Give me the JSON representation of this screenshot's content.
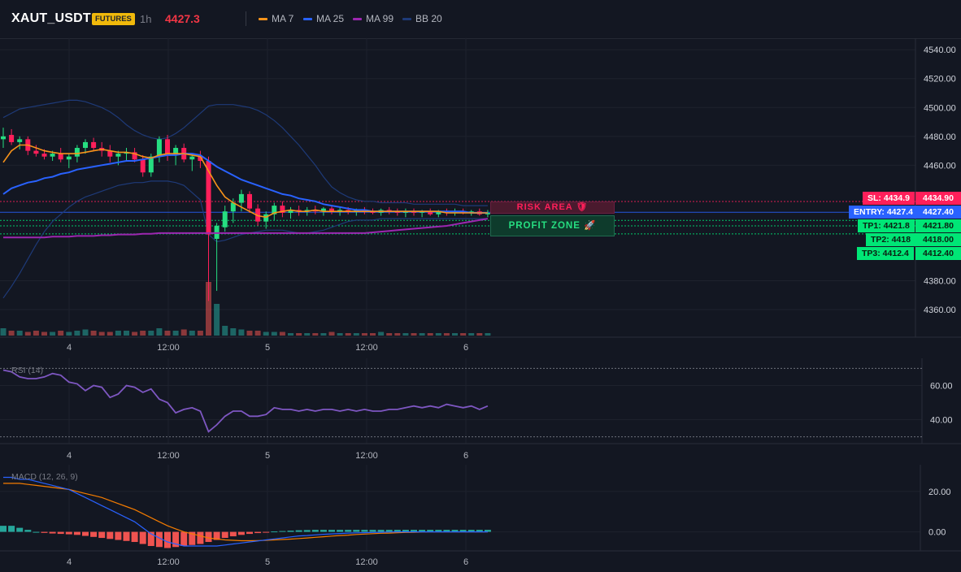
{
  "header": {
    "symbol": "XAUT_USDT",
    "badge": "FUTURES",
    "timeframe": "1h",
    "price": "4427.3",
    "legend": [
      {
        "label": "MA 7",
        "color": "#f7931a"
      },
      {
        "label": "MA 25",
        "color": "#2962ff"
      },
      {
        "label": "MA 99",
        "color": "#9c27b0"
      },
      {
        "label": "BB 20",
        "color": "#1e3a78"
      }
    ]
  },
  "colors": {
    "up": "#26de81",
    "down": "#ff1f5a",
    "ma7": "#f7931a",
    "ma25": "#2962ff",
    "ma99": "#9c27b0",
    "bb": "#1e3a78",
    "rsi": "#7e57c2",
    "macd": "#2962ff",
    "signal": "#f57c00",
    "hist_up": "#26a69a",
    "hist_down": "#ef5350"
  },
  "levels": {
    "sl": {
      "tag": "SL: 4434.9",
      "axis": "4434.90",
      "price": 4434.9,
      "color": "#ff1f5a"
    },
    "entry": {
      "tag": "ENTRY: 4427.4",
      "axis": "4427.40",
      "price": 4427.4,
      "color": "#2962ff"
    },
    "tp1": {
      "tag": "TP1: 4421.8",
      "axis": "4421.80",
      "price": 4421.8,
      "color": "#00e676"
    },
    "tp2": {
      "tag": "TP2: 4418",
      "axis": "4418.00",
      "price": 4418.0,
      "color": "#00e676"
    },
    "tp3": {
      "tag": "TP3: 4412.4",
      "axis": "4412.40",
      "price": 4412.4,
      "color": "#00e676"
    }
  },
  "zones": {
    "risk_label": "RISK AREA 🛡",
    "profit_label": "PROFIT ZONE 🚀"
  },
  "rsi_label": "RSI (14)",
  "macd_label": "MACD (12, 26, 9)",
  "x_ticks": [
    "4",
    "12:00",
    "5",
    "12:00",
    "6"
  ],
  "chart_data": [
    {
      "type": "candlestick",
      "title": "XAUT_USDT 1h",
      "ylim": [
        4342,
        4548
      ],
      "y_ticks": [
        4540,
        4520,
        4500,
        4480,
        4460,
        4380,
        4360
      ],
      "y_tick_labels": [
        "4540.00",
        "4520.00",
        "4500.00",
        "4480.00",
        "4460.00",
        "4380.00",
        "4360.00"
      ],
      "candles": [
        [
          4478,
          4486,
          4472,
          4480
        ],
        [
          4481,
          4485,
          4474,
          4476
        ],
        [
          4476,
          4480,
          4471,
          4478
        ],
        [
          4478,
          4480,
          4467,
          4470
        ],
        [
          4470,
          4474,
          4466,
          4468
        ],
        [
          4468,
          4471,
          4464,
          4466
        ],
        [
          4466,
          4470,
          4463,
          4468
        ],
        [
          4468,
          4472,
          4462,
          4464
        ],
        [
          4464,
          4468,
          4458,
          4466
        ],
        [
          4466,
          4474,
          4462,
          4472
        ],
        [
          4472,
          4478,
          4468,
          4476
        ],
        [
          4476,
          4479,
          4470,
          4472
        ],
        [
          4472,
          4476,
          4466,
          4470
        ],
        [
          4470,
          4474,
          4462,
          4466
        ],
        [
          4466,
          4470,
          4460,
          4468
        ],
        [
          4468,
          4472,
          4463,
          4469
        ],
        [
          4469,
          4472,
          4462,
          4464
        ],
        [
          4464,
          4467,
          4452,
          4455
        ],
        [
          4455,
          4468,
          4452,
          4466
        ],
        [
          4466,
          4480,
          4462,
          4478
        ],
        [
          4478,
          4481,
          4463,
          4467
        ],
        [
          4467,
          4474,
          4460,
          4472
        ],
        [
          4472,
          4475,
          4462,
          4464
        ],
        [
          4464,
          4468,
          4456,
          4466
        ],
        [
          4466,
          4470,
          4458,
          4463
        ],
        [
          4463,
          4466,
          4366,
          4412
        ],
        [
          4409,
          4420,
          4373,
          4418
        ],
        [
          4417,
          4432,
          4414,
          4428
        ],
        [
          4428,
          4437,
          4420,
          4434
        ],
        [
          4434,
          4443,
          4428,
          4440
        ],
        [
          4440,
          4442,
          4427,
          4430
        ],
        [
          4430,
          4433,
          4418,
          4421
        ],
        [
          4421,
          4428,
          4416,
          4426
        ],
        [
          4426,
          4434,
          4422,
          4432
        ],
        [
          4432,
          4435,
          4424,
          4427
        ],
        [
          4427,
          4431,
          4423,
          4429
        ],
        [
          4429,
          4432,
          4425,
          4428
        ],
        [
          4428,
          4431,
          4425,
          4429
        ],
        [
          4429,
          4432,
          4426,
          4428
        ],
        [
          4428,
          4431,
          4425,
          4430
        ],
        [
          4430,
          4432,
          4426,
          4428
        ],
        [
          4428,
          4431,
          4425,
          4429
        ],
        [
          4429,
          4431,
          4426,
          4428
        ],
        [
          4428,
          4430,
          4425,
          4429
        ],
        [
          4429,
          4431,
          4426,
          4428
        ],
        [
          4428,
          4430,
          4426,
          4427
        ],
        [
          4427,
          4430,
          4425,
          4429
        ],
        [
          4429,
          4431,
          4426,
          4428
        ],
        [
          4428,
          4430,
          4425,
          4427
        ],
        [
          4427,
          4430,
          4424,
          4428
        ],
        [
          4428,
          4430,
          4425,
          4427
        ],
        [
          4427,
          4429,
          4424,
          4428
        ],
        [
          4428,
          4430,
          4425,
          4426
        ],
        [
          4426,
          4429,
          4424,
          4428
        ],
        [
          4428,
          4430,
          4425,
          4427
        ],
        [
          4427,
          4430,
          4425,
          4428
        ],
        [
          4428,
          4430,
          4426,
          4427
        ],
        [
          4427,
          4429,
          4425,
          4428
        ],
        [
          4428,
          4430,
          4425,
          4426
        ],
        [
          4426,
          4429,
          4424,
          4427
        ]
      ],
      "volume": [
        3,
        2,
        2,
        1.5,
        2,
        1.5,
        1.5,
        2,
        1.5,
        2,
        2.5,
        2,
        1.5,
        1.5,
        2,
        2,
        1.5,
        2,
        2,
        3,
        2,
        2,
        2.5,
        2,
        2,
        22,
        13,
        4,
        3,
        2.5,
        2,
        2,
        1.5,
        1.5,
        1.5,
        1,
        1,
        1,
        1,
        1,
        1.5,
        1,
        1,
        1,
        1,
        1,
        1.5,
        1,
        1,
        1,
        1,
        1,
        1,
        1,
        1,
        1,
        1,
        1,
        1,
        1
      ],
      "ma7": [
        4462,
        4470,
        4474,
        4474,
        4472,
        4470,
        4469,
        4468,
        4468,
        4468,
        4469,
        4470,
        4471,
        4470,
        4469,
        4469,
        4468,
        4466,
        4465,
        4467,
        4468,
        4468,
        4468,
        4467,
        4466,
        4456,
        4446,
        4438,
        4434,
        4431,
        4428,
        4425,
        4424,
        4427,
        4428,
        4429,
        4428,
        4428,
        4429,
        4428,
        4428,
        4428,
        4428,
        4428,
        4428,
        4428,
        4428,
        4428,
        4428,
        4428,
        4428,
        4428,
        4428,
        4428,
        4427,
        4427,
        4427,
        4427,
        4427,
        4427
      ],
      "ma25": [
        4440,
        4444,
        4446,
        4448,
        4449,
        4451,
        4452,
        4454,
        4455,
        4457,
        4458,
        4459,
        4460,
        4461,
        4462,
        4463,
        4463,
        4464,
        4465,
        4466,
        4467,
        4467,
        4468,
        4468,
        4467,
        4463,
        4459,
        4456,
        4453,
        4450,
        4448,
        4446,
        4444,
        4442,
        4440,
        4439,
        4437,
        4436,
        4435,
        4433,
        4432,
        4431,
        4430,
        4429,
        4429,
        4428,
        4428,
        4428,
        4428,
        4428,
        4428,
        4428,
        4428,
        4428,
        4428,
        4428,
        4428,
        4427,
        4427,
        4427
      ],
      "ma99": [
        4410,
        4410,
        4410,
        4410,
        4410,
        4410,
        4410.5,
        4410.5,
        4410.5,
        4411,
        4411,
        4411,
        4411.5,
        4411.5,
        4412,
        4412,
        4412,
        4412.5,
        4412.5,
        4413,
        4413,
        4413,
        4413,
        4413,
        4413,
        4413,
        4413,
        4413,
        4413,
        4413,
        4413,
        4413,
        4413,
        4413,
        4413,
        4413,
        4413,
        4413,
        4413,
        4413,
        4413,
        4413,
        4413,
        4413,
        4413,
        4413.5,
        4414,
        4414.5,
        4415,
        4415.5,
        4416,
        4416.5,
        4417,
        4417.5,
        4418,
        4419,
        4420,
        4421,
        4422,
        4423
      ],
      "bb_upper": [
        4493,
        4496,
        4499,
        4500,
        4501,
        4502,
        4503,
        4504,
        4505,
        4505,
        4504,
        4502,
        4500,
        4497,
        4493,
        4488,
        4484,
        4481,
        4479,
        4478,
        4479,
        4482,
        4486,
        4491,
        4496,
        4501,
        4502,
        4502,
        4502,
        4501,
        4500,
        4498,
        4495,
        4491,
        4486,
        4480,
        4474,
        4467,
        4460,
        4452,
        4445,
        4441,
        4438,
        4436,
        4435,
        4435,
        4434,
        4434,
        4434,
        4434,
        4433,
        4433,
        4433,
        4433,
        4433,
        4433,
        4432,
        4432,
        4432,
        4432
      ],
      "bb_lower": [
        4368,
        4376,
        4385,
        4395,
        4405,
        4414,
        4421,
        4426,
        4431,
        4435,
        4438,
        4440,
        4442,
        4444,
        4446,
        4447,
        4448,
        4448,
        4449,
        4449,
        4449,
        4448,
        4446,
        4441,
        4436,
        4412,
        4407,
        4408,
        4410,
        4412,
        4413,
        4414,
        4415,
        4415,
        4415,
        4414,
        4413,
        4413,
        4414,
        4415,
        4417,
        4419,
        4421,
        4422,
        4422,
        4422,
        4423,
        4423,
        4423,
        4423,
        4423,
        4423,
        4423,
        4423,
        4423,
        4423,
        4423,
        4423,
        4423,
        4423
      ]
    },
    {
      "type": "line",
      "title": "RSI (14)",
      "ylim": [
        26,
        74
      ],
      "y_ticks": [
        60,
        40
      ],
      "y_tick_labels": [
        "60.00",
        "40.00"
      ],
      "bands": [
        70,
        30
      ],
      "values": [
        69,
        68,
        65,
        64,
        64,
        65,
        67,
        66,
        62,
        61,
        57,
        60,
        59,
        53,
        55,
        60,
        59,
        56,
        58,
        52,
        50,
        44,
        46,
        47,
        45,
        33,
        37,
        42,
        45,
        45,
        42,
        42,
        43,
        47,
        46,
        46,
        45,
        46,
        45,
        46,
        46,
        45,
        46,
        45,
        46,
        45,
        45,
        46,
        46,
        47,
        48,
        47,
        48,
        47,
        49,
        48,
        47,
        48,
        46,
        48
      ]
    },
    {
      "type": "line",
      "title": "MACD (12, 26, 9)",
      "ylim": [
        -7,
        30
      ],
      "y_ticks": [
        20,
        0
      ],
      "y_tick_labels": [
        "20.00",
        "0.00"
      ],
      "macd": [
        27,
        27,
        26,
        26,
        25,
        24,
        23,
        22,
        21,
        19,
        17,
        15,
        13,
        11,
        9,
        7,
        5,
        2,
        -1,
        -3,
        -5,
        -6,
        -7,
        -7,
        -7,
        -7,
        -7,
        -6.5,
        -6,
        -5.5,
        -5,
        -4.5,
        -4,
        -3.5,
        -3,
        -2.5,
        -2,
        -1.8,
        -1.5,
        -1.2,
        -1,
        -0.8,
        -0.6,
        -0.5,
        -0.4,
        -0.3,
        -0.2,
        -0.1,
        0,
        0,
        0,
        0,
        0,
        0,
        0,
        0,
        0,
        0,
        0,
        0
      ],
      "signal": [
        24,
        24,
        24,
        23.5,
        23,
        22.5,
        22,
        21.5,
        21,
        20,
        19,
        18,
        17,
        15.5,
        14,
        12.5,
        11,
        9,
        7,
        5,
        3,
        1.5,
        0,
        -1,
        -2,
        -3,
        -3.5,
        -4,
        -4.2,
        -4.4,
        -4.4,
        -4.3,
        -4.2,
        -4,
        -3.8,
        -3.6,
        -3.3,
        -3,
        -2.7,
        -2.4,
        -2.1,
        -1.8,
        -1.6,
        -1.3,
        -1.1,
        -0.9,
        -0.7,
        -0.6,
        -0.4,
        -0.3,
        -0.2,
        -0.1,
        0,
        0,
        0,
        0,
        0,
        0,
        0,
        0
      ],
      "histogram": [
        3,
        3,
        2,
        1,
        0,
        -0.5,
        -0.8,
        -1,
        -1.2,
        -1.5,
        -2,
        -2.5,
        -3,
        -3.5,
        -4,
        -4.5,
        -5,
        -6,
        -7,
        -7.5,
        -8,
        -7.5,
        -7,
        -6.5,
        -6,
        -5,
        -4,
        -3,
        -2.2,
        -1.5,
        -1,
        -0.6,
        -0.3,
        0.2,
        0.4,
        0.6,
        0.8,
        0.9,
        1,
        1,
        1,
        1,
        1,
        1,
        1,
        1,
        1,
        1,
        1,
        1,
        1,
        1,
        1,
        1,
        1,
        1,
        1,
        1,
        1,
        1
      ]
    }
  ]
}
